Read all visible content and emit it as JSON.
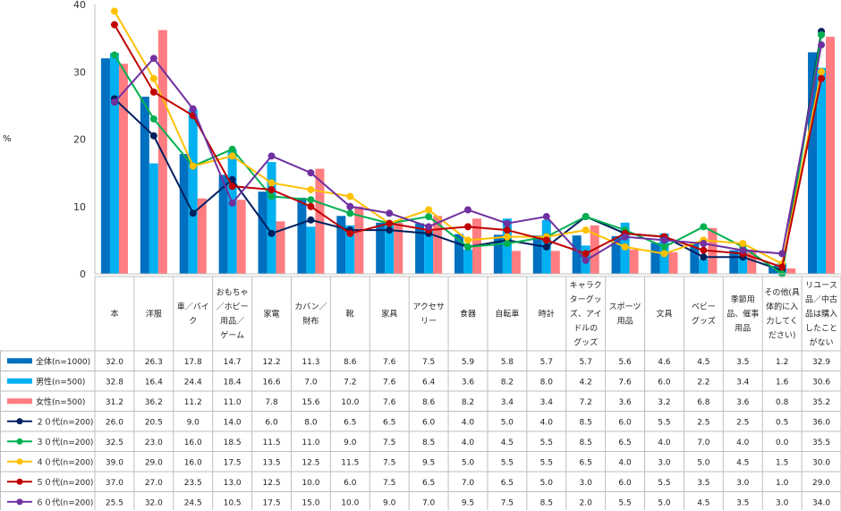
{
  "chart_data": {
    "type": "bar+line",
    "ylabel": "%",
    "ylim": [
      0,
      40
    ],
    "yticks": [
      0,
      10,
      20,
      30,
      40
    ],
    "categories": [
      [
        "本"
      ],
      [
        "洋服"
      ],
      [
        "車／バイ",
        "ク"
      ],
      [
        "おもちゃ",
        "／ホビー",
        "用品／",
        "ゲーム"
      ],
      [
        "家電"
      ],
      [
        "カバン／",
        "財布"
      ],
      [
        "靴"
      ],
      [
        "家具"
      ],
      [
        "アクセサ",
        "リー"
      ],
      [
        "食器"
      ],
      [
        "自転車"
      ],
      [
        "時計"
      ],
      [
        "キャラク",
        "ターグッ",
        "ズ、アイ",
        "ドルの",
        "グッズ"
      ],
      [
        "スポーツ",
        "用品"
      ],
      [
        "文具"
      ],
      [
        "ベビー",
        "グッズ"
      ],
      [
        "季節用",
        "品、催事",
        "用品"
      ],
      [
        "その他(具",
        "体的に入",
        "力してく",
        "ださい)"
      ],
      [
        "リユース",
        "品／中古",
        "品は購入",
        "したこと",
        "がない"
      ]
    ],
    "bar_series": [
      {
        "name": "全体(n=1000)",
        "color": "#0070C0",
        "values": [
          32.0,
          26.3,
          17.8,
          14.7,
          12.2,
          11.3,
          8.6,
          7.6,
          7.5,
          5.9,
          5.8,
          5.7,
          5.7,
          5.6,
          4.6,
          4.5,
          3.5,
          1.2,
          32.9
        ]
      },
      {
        "name": "男性(n=500)",
        "color": "#00B0F0",
        "values": [
          32.8,
          16.4,
          24.4,
          18.4,
          16.6,
          7.0,
          7.2,
          7.6,
          6.4,
          3.6,
          8.2,
          8.0,
          4.2,
          7.6,
          6.0,
          2.2,
          3.4,
          1.6,
          30.6
        ]
      },
      {
        "name": "女性(n=500)",
        "color": "#FF7C80",
        "values": [
          31.2,
          36.2,
          11.2,
          11.0,
          7.8,
          15.6,
          10.0,
          7.6,
          8.6,
          8.2,
          3.4,
          3.4,
          7.2,
          3.6,
          3.2,
          6.8,
          3.6,
          0.8,
          35.2
        ]
      }
    ],
    "line_series": [
      {
        "name": "２０代(n=200)",
        "color": "#002060",
        "values": [
          26.0,
          20.5,
          9.0,
          14.0,
          6.0,
          8.0,
          6.5,
          6.5,
          6.0,
          4.0,
          5.0,
          4.0,
          8.5,
          6.0,
          5.5,
          2.5,
          2.5,
          0.5,
          36.0
        ]
      },
      {
        "name": "３０代(n=200)",
        "color": "#00B050",
        "values": [
          32.5,
          23.0,
          16.0,
          18.5,
          11.5,
          11.0,
          9.0,
          7.5,
          8.5,
          4.0,
          4.5,
          5.5,
          8.5,
          6.5,
          4.0,
          7.0,
          4.0,
          0.0,
          35.5
        ]
      },
      {
        "name": "４０代(n=200)",
        "color": "#FFC000",
        "values": [
          39.0,
          29.0,
          16.0,
          17.5,
          13.5,
          12.5,
          11.5,
          7.5,
          9.5,
          5.0,
          5.5,
          5.5,
          6.5,
          4.0,
          3.0,
          5.0,
          4.5,
          1.5,
          30.0
        ]
      },
      {
        "name": "５０代(n=200)",
        "color": "#C00000",
        "values": [
          37.0,
          27.0,
          23.5,
          13.0,
          12.5,
          10.0,
          6.0,
          7.5,
          6.5,
          7.0,
          6.5,
          5.0,
          3.0,
          6.0,
          5.5,
          3.5,
          3.0,
          1.0,
          29.0
        ]
      },
      {
        "name": "６０代(n=200)",
        "color": "#7030A0",
        "values": [
          25.5,
          32.0,
          24.5,
          10.5,
          17.5,
          15.0,
          10.0,
          9.0,
          7.0,
          9.5,
          7.5,
          8.5,
          2.0,
          5.5,
          5.0,
          4.5,
          3.5,
          3.0,
          34.0
        ]
      }
    ]
  }
}
